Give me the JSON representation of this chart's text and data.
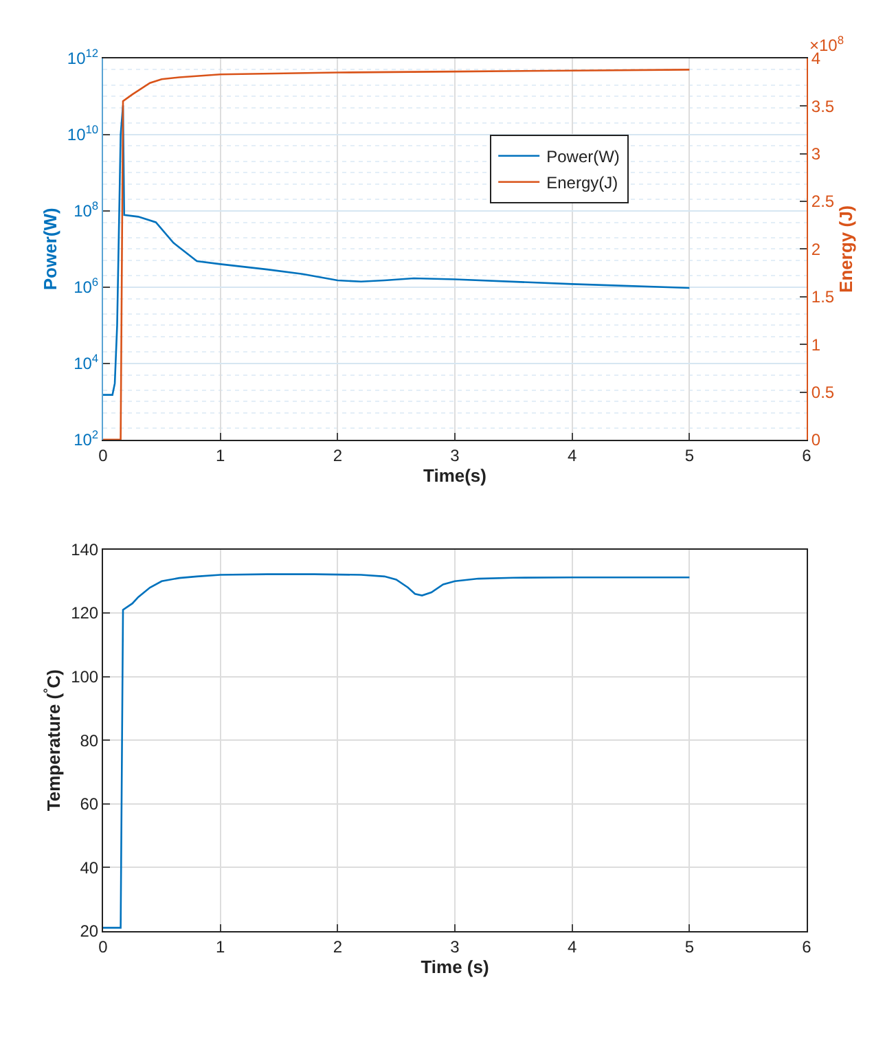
{
  "chart_data": [
    {
      "type": "line",
      "xlabel": "Time(s)",
      "ylabel": "Power(W)",
      "y2label": "Energy (J)",
      "log": "y",
      "grid": true,
      "legend": "top right",
      "line_style": "solid",
      "marker": "none",
      "xlim": [
        0,
        6
      ],
      "xticks": [
        0,
        1,
        2,
        3,
        4,
        5,
        6
      ],
      "ylim": [
        100,
        1000000000000
      ],
      "yticks": [
        {
          "value": 100,
          "label": "10$^{2}$"
        },
        {
          "value": 10000,
          "label": "10$^{4}$"
        },
        {
          "value": 1000000,
          "label": "10$^{6}$"
        },
        {
          "value": 100000000,
          "label": "10$^{8}$"
        },
        {
          "value": 10000000000,
          "label": "10$^{10}$"
        },
        {
          "value": 1000000000000,
          "label": "10$^{12}$"
        }
      ],
      "y2lim": [
        0,
        4
      ],
      "y2ticks": [
        0,
        0.5,
        1,
        1.5,
        2,
        2.5,
        3,
        3.5,
        4
      ],
      "annotations": [
        "×10$^{8}$"
      ],
      "series": [
        {
          "name": "Power(W)",
          "color": "#0072bd",
          "x": [
            0,
            0.08,
            0.1,
            0.12,
            0.15,
            0.17,
            0.18,
            0.3,
            0.45,
            0.6,
            0.8,
            1.0,
            1.4,
            1.7,
            2.0,
            2.2,
            2.4,
            2.65,
            3.0,
            4.0,
            5.0
          ],
          "values": [
            1500,
            1500,
            3000,
            100000,
            10000000000,
            58000000000,
            78000000,
            70000000,
            50000000,
            14500000,
            4800000,
            4000000,
            2900000,
            2200000,
            1500000,
            1400000,
            1500000,
            1700000,
            1600000,
            1200000,
            950000
          ]
        },
        {
          "name": "Energy(J)",
          "color": "#d95319",
          "axis": "y2",
          "x": [
            0,
            0.15,
            0.17,
            0.25,
            0.4,
            0.5,
            0.65,
            1.0,
            2.0,
            3.0,
            4.0,
            5.0
          ],
          "values": [
            0,
            0,
            3.55,
            3.62,
            3.74,
            3.78,
            3.8,
            3.83,
            3.85,
            3.86,
            3.87,
            3.88
          ]
        }
      ]
    },
    {
      "type": "line",
      "xlabel": "Time (s)",
      "ylabel": "Temperature ($^{°}$C)",
      "grid": true,
      "line_style": "solid",
      "marker": "none",
      "xlim": [
        0,
        6
      ],
      "xticks": [
        0,
        1,
        2,
        3,
        4,
        5,
        6
      ],
      "ylim": [
        20,
        140
      ],
      "yticks": [
        20,
        40,
        60,
        80,
        100,
        120,
        140
      ],
      "series": [
        {
          "color": "#0072bd",
          "x": [
            0,
            0.15,
            0.17,
            0.25,
            0.3,
            0.4,
            0.5,
            0.65,
            0.8,
            1.0,
            1.4,
            1.8,
            2.2,
            2.4,
            2.5,
            2.6,
            2.66,
            2.72,
            2.8,
            2.9,
            3.0,
            3.2,
            3.5,
            4.0,
            5.0
          ],
          "values": [
            21,
            21,
            121,
            123,
            125,
            128,
            130,
            131,
            131.5,
            132,
            132.2,
            132.2,
            132,
            131.5,
            130.5,
            128,
            126,
            125.5,
            126.5,
            129,
            130,
            130.8,
            131.1,
            131.2,
            131.2
          ]
        }
      ]
    }
  ]
}
